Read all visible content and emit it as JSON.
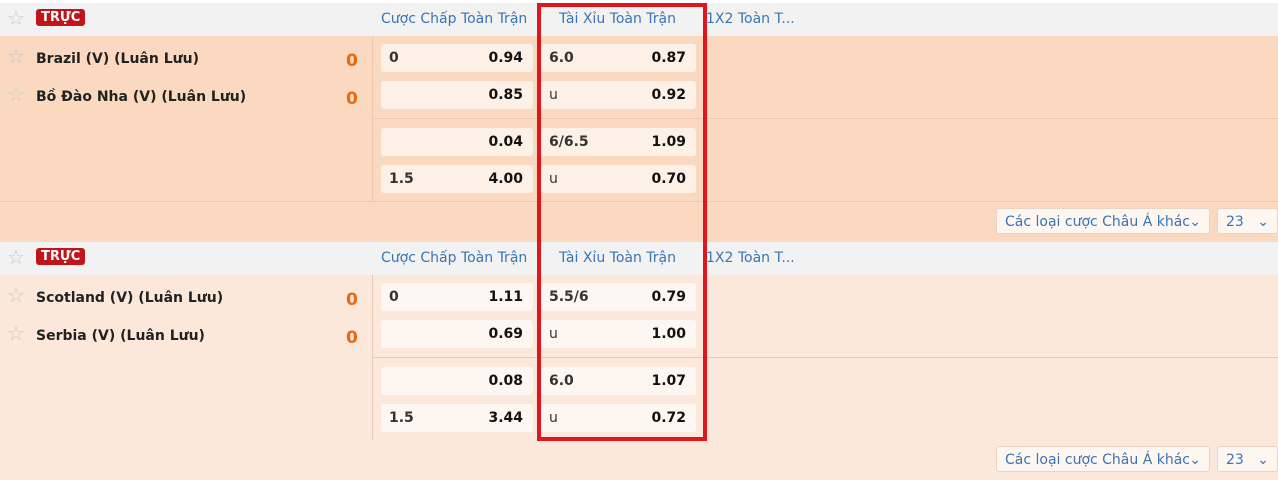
{
  "columns": {
    "handicap": "Cược Chấp Toàn Trận",
    "over_under": "Tài Xỉu Toàn Trận",
    "x12": "1X2 Toàn T..."
  },
  "live_label": "TRỰC",
  "matches": [
    {
      "home": "Brazil (V) (Luân Lưu)",
      "away": "Bồ Đào Nha (V) (Luân Lưu)",
      "home_score": "0",
      "away_score": "0",
      "handicap": [
        [
          "0",
          "0.94"
        ],
        [
          "",
          "0.85"
        ],
        [
          "",
          "0.04"
        ],
        [
          "1.5",
          "4.00"
        ]
      ],
      "over_under": [
        [
          "6.0",
          "0.87"
        ],
        [
          "u",
          "0.92"
        ],
        [
          "6/6.5",
          "1.09"
        ],
        [
          "u",
          "0.70"
        ]
      ],
      "more_select": "Các loại cược Châu Á khác",
      "count_select": "23"
    },
    {
      "home": "Scotland (V) (Luân Lưu)",
      "away": "Serbia (V) (Luân Lưu)",
      "home_score": "0",
      "away_score": "0",
      "handicap": [
        [
          "0",
          "1.11"
        ],
        [
          "",
          "0.69"
        ],
        [
          "",
          "0.08"
        ],
        [
          "1.5",
          "3.44"
        ]
      ],
      "over_under": [
        [
          "5.5/6",
          "0.79"
        ],
        [
          "u",
          "1.00"
        ],
        [
          "6.0",
          "1.07"
        ],
        [
          "u",
          "0.72"
        ]
      ],
      "more_select": "Các loại cược Châu Á khác",
      "count_select": "23"
    }
  ],
  "colors": {
    "highlight_box": "#e0161e",
    "live_badge": "#c0161b",
    "score": "#e8690f",
    "link": "#3a74b4"
  },
  "icons": {
    "favorite": "star-outline-icon",
    "dropdown": "chevron-down-icon"
  }
}
